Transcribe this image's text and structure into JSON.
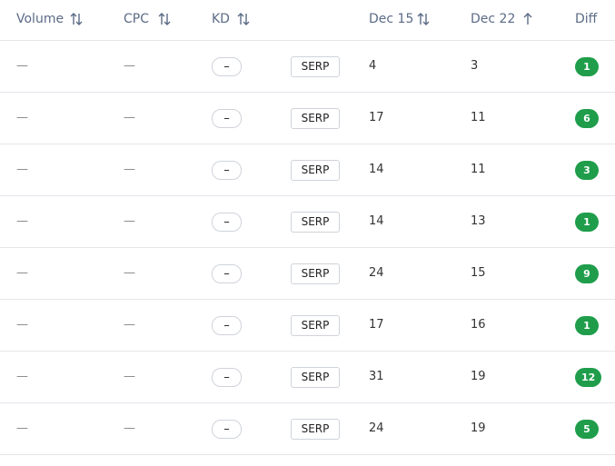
{
  "header": {
    "volume": "Volume",
    "cpc": "CPC",
    "kd": "KD",
    "dec15": "Dec 15",
    "dec22": "Dec 22",
    "diff": "Diff"
  },
  "rows": [
    {
      "volume": "—",
      "cpc": "—",
      "kd": "–",
      "serp": "SERP",
      "dec15": 4,
      "dec22": 3,
      "diff": 1
    },
    {
      "volume": "—",
      "cpc": "—",
      "kd": "–",
      "serp": "SERP",
      "dec15": 17,
      "dec22": 11,
      "diff": 6
    },
    {
      "volume": "—",
      "cpc": "—",
      "kd": "–",
      "serp": "SERP",
      "dec15": 14,
      "dec22": 11,
      "diff": 3
    },
    {
      "volume": "—",
      "cpc": "—",
      "kd": "–",
      "serp": "SERP",
      "dec15": 14,
      "dec22": 13,
      "diff": 1
    },
    {
      "volume": "—",
      "cpc": "—",
      "kd": "–",
      "serp": "SERP",
      "dec15": 24,
      "dec22": 15,
      "diff": 9
    },
    {
      "volume": "—",
      "cpc": "—",
      "kd": "–",
      "serp": "SERP",
      "dec15": 17,
      "dec22": 16,
      "diff": 1
    },
    {
      "volume": "—",
      "cpc": "—",
      "kd": "–",
      "serp": "SERP",
      "dec15": 31,
      "dec22": 19,
      "diff": 12
    },
    {
      "volume": "—",
      "cpc": "—",
      "kd": "–",
      "serp": "SERP",
      "dec15": 24,
      "dec22": 19,
      "diff": 5
    }
  ]
}
